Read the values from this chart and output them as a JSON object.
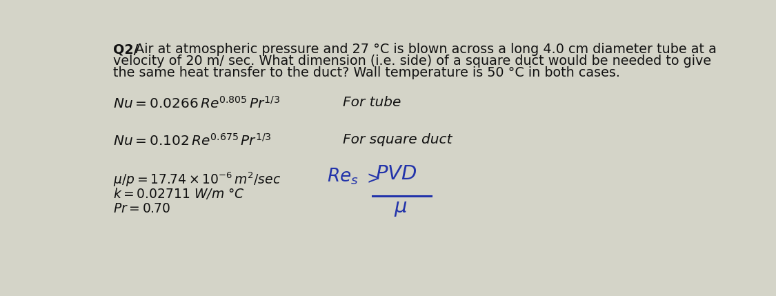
{
  "bg_color": "#d4d4c8",
  "text_color": "#111111",
  "hand_color": "#2233aa",
  "title_bold": "Q2/",
  "title_rest_line1": " Air at atmospheric pressure and 27 °C is blown across a long 4.0 cm diameter tube at a",
  "title_line2": "velocity of 20 m/ sec. What dimension (i.e. side) of a square duct would be needed to give",
  "title_line3": "the same heat transfer to the duct? Wall temperature is 50 °C in both cases.",
  "eq1": "$Nu = 0.0266\\,Re^{0.805}\\,Pr^{1/3}$",
  "eq1_label": "For tube",
  "eq2": "$Nu = 0.102\\,Re^{0.675}\\,Pr^{1/3}$",
  "eq2_label": "For square duct",
  "prop1": "$\\mu/p = 17.74 \\times 10^{-6}\\,m^2/sec$",
  "prop2": "$k = 0.02711$ W/m °C",
  "prop3": "$Pr = 0.70$",
  "title_fs": 13.8,
  "eq_fs": 14.5,
  "prop_fs": 13.5,
  "hand_fs": 17,
  "label_fs": 14.5
}
